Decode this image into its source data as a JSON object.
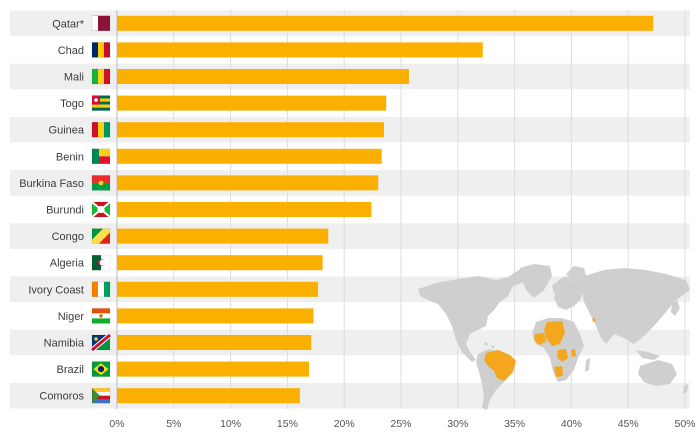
{
  "chart_data": {
    "type": "bar",
    "orientation": "horizontal",
    "categories": [
      "Qatar*",
      "Chad",
      "Mali",
      "Togo",
      "Guinea",
      "Benin",
      "Burkina Faso",
      "Burundi",
      "Congo",
      "Algeria",
      "Ivory Coast",
      "Niger",
      "Namibia",
      "Brazil",
      "Comoros"
    ],
    "values": [
      47.2,
      32.2,
      25.7,
      23.7,
      23.5,
      23.3,
      23.0,
      22.4,
      18.6,
      18.1,
      17.7,
      17.3,
      17.1,
      16.9,
      16.1
    ],
    "xlim": [
      0,
      50
    ],
    "xticks": [
      0,
      5,
      10,
      15,
      20,
      25,
      30,
      35,
      40,
      45,
      50
    ],
    "xtick_labels": [
      "0%",
      "5%",
      "10%",
      "15%",
      "20%",
      "25%",
      "30%",
      "35%",
      "40%",
      "45%",
      "50%"
    ],
    "grid": true,
    "flags": [
      "qatar-flag-icon",
      "chad-flag-icon",
      "mali-flag-icon",
      "togo-flag-icon",
      "guinea-flag-icon",
      "benin-flag-icon",
      "burkina-faso-flag-icon",
      "burundi-flag-icon",
      "congo-flag-icon",
      "algeria-flag-icon",
      "ivory-coast-flag-icon",
      "niger-flag-icon",
      "namibia-flag-icon",
      "brazil-flag-icon",
      "comoros-flag-icon"
    ],
    "inset": "world-map-highlighted-countries-icon"
  },
  "colors": {
    "bar": "#fbb000",
    "highlight": "#f4a61c",
    "row_band": "#efefef",
    "map_land": "#cccccc",
    "grid": "#dddddd"
  }
}
